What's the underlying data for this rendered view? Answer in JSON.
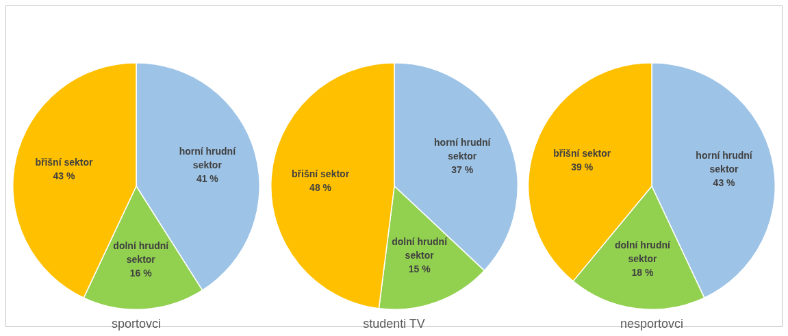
{
  "chart_data": [
    {
      "type": "pie",
      "title": "sportovci",
      "categories": [
        "horní hrudní sektor",
        "dolní hrudní sektor",
        "břišní sektor"
      ],
      "values": [
        41,
        16,
        43
      ],
      "value_labels": [
        "41 %",
        "16 %",
        "43 %"
      ],
      "colors": [
        "#9dc3e6",
        "#92d050",
        "#ffc000"
      ]
    },
    {
      "type": "pie",
      "title": "studenti TV",
      "categories": [
        "horní hrudní sektor",
        "dolní hrudní sektor",
        "břišní sektor"
      ],
      "values": [
        37,
        15,
        48
      ],
      "value_labels": [
        "37 %",
        "15 %",
        "48 %"
      ],
      "colors": [
        "#9dc3e6",
        "#92d050",
        "#ffc000"
      ]
    },
    {
      "type": "pie",
      "title": "nesportovci",
      "categories": [
        "horní hrudní sektor",
        "dolní hrudní sektor",
        "břišní sektor"
      ],
      "values": [
        43,
        18,
        39
      ],
      "value_labels": [
        "43 %",
        "18 %",
        "39 %"
      ],
      "colors": [
        "#9dc3e6",
        "#92d050",
        "#ffc000"
      ]
    }
  ]
}
